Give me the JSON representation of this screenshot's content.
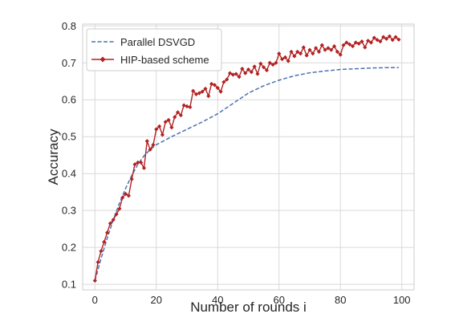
{
  "chart_data": {
    "type": "line",
    "xlabel": "Number of rounds i",
    "ylabel": "Accuracy",
    "xlim": [
      -4,
      104
    ],
    "ylim": [
      0.085,
      0.805
    ],
    "xticks": [
      0,
      20,
      40,
      60,
      80,
      100
    ],
    "yticks": [
      0.1,
      0.2,
      0.3,
      0.4,
      0.5,
      0.6,
      0.7,
      0.8
    ],
    "xtick_labels": [
      "0",
      "20",
      "40",
      "60",
      "80",
      "100"
    ],
    "ytick_labels": [
      "0.1",
      "0.2",
      "0.3",
      "0.4",
      "0.5",
      "0.6",
      "0.7",
      "0.8"
    ],
    "grid": true,
    "legend_position": "top-left",
    "series": [
      {
        "name": "Parallel DSVGD",
        "color": "#4c72b0",
        "style": "dashed",
        "marker": "none",
        "x": [
          0,
          2,
          4,
          6,
          8,
          10,
          12,
          14,
          16,
          18,
          20,
          25,
          30,
          35,
          40,
          45,
          50,
          55,
          60,
          65,
          70,
          75,
          80,
          85,
          90,
          95,
          99
        ],
        "y": [
          0.11,
          0.17,
          0.225,
          0.275,
          0.32,
          0.36,
          0.395,
          0.425,
          0.448,
          0.465,
          0.478,
          0.5,
          0.52,
          0.54,
          0.562,
          0.59,
          0.618,
          0.638,
          0.653,
          0.665,
          0.673,
          0.678,
          0.682,
          0.684,
          0.686,
          0.687,
          0.687
        ]
      },
      {
        "name": "HIP-based scheme",
        "color": "#b22222",
        "style": "solid",
        "marker": "diamond",
        "x": [
          0,
          1,
          2,
          3,
          4,
          5,
          6,
          7,
          8,
          9,
          10,
          11,
          12,
          13,
          14,
          15,
          16,
          17,
          18,
          19,
          20,
          21,
          22,
          23,
          24,
          25,
          26,
          27,
          28,
          29,
          30,
          31,
          32,
          33,
          34,
          35,
          36,
          37,
          38,
          39,
          40,
          41,
          42,
          43,
          44,
          45,
          46,
          47,
          48,
          49,
          50,
          51,
          52,
          53,
          54,
          55,
          56,
          57,
          58,
          59,
          60,
          61,
          62,
          63,
          64,
          65,
          66,
          67,
          68,
          69,
          70,
          71,
          72,
          73,
          74,
          75,
          76,
          77,
          78,
          79,
          80,
          81,
          82,
          83,
          84,
          85,
          86,
          87,
          88,
          89,
          90,
          91,
          92,
          93,
          94,
          95,
          96,
          97,
          98,
          99
        ],
        "y": [
          0.11,
          0.16,
          0.19,
          0.215,
          0.24,
          0.265,
          0.275,
          0.29,
          0.305,
          0.335,
          0.345,
          0.34,
          0.385,
          0.425,
          0.43,
          0.43,
          0.415,
          0.488,
          0.465,
          0.478,
          0.52,
          0.528,
          0.505,
          0.54,
          0.545,
          0.525,
          0.553,
          0.566,
          0.558,
          0.585,
          0.582,
          0.58,
          0.624,
          0.615,
          0.618,
          0.622,
          0.63,
          0.61,
          0.643,
          0.64,
          0.632,
          0.622,
          0.648,
          0.655,
          0.672,
          0.668,
          0.67,
          0.662,
          0.684,
          0.672,
          0.682,
          0.675,
          0.69,
          0.67,
          0.698,
          0.688,
          0.68,
          0.7,
          0.695,
          0.7,
          0.725,
          0.71,
          0.715,
          0.705,
          0.73,
          0.718,
          0.73,
          0.725,
          0.742,
          0.72,
          0.735,
          0.725,
          0.74,
          0.73,
          0.748,
          0.735,
          0.74,
          0.735,
          0.745,
          0.73,
          0.722,
          0.748,
          0.755,
          0.75,
          0.745,
          0.755,
          0.752,
          0.758,
          0.742,
          0.76,
          0.755,
          0.768,
          0.762,
          0.758,
          0.77,
          0.765,
          0.772,
          0.762,
          0.77,
          0.763
        ]
      }
    ]
  }
}
